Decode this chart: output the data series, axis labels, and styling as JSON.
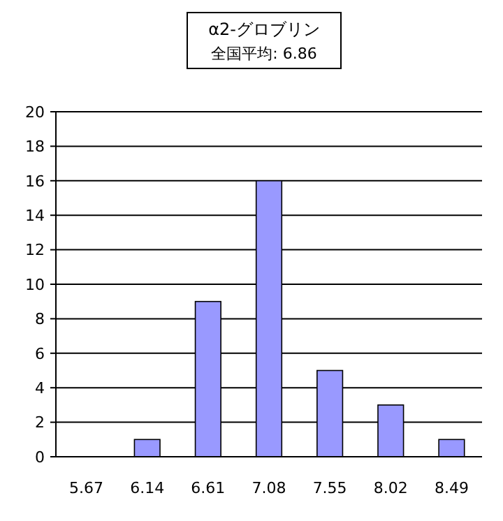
{
  "chart_data": {
    "type": "bar",
    "title": "α2-グロブリン",
    "subtitle": "全国平均: 6.86",
    "categories": [
      "5.67",
      "6.14",
      "6.61",
      "7.08",
      "7.55",
      "8.02",
      "8.49"
    ],
    "values": [
      0,
      1,
      9,
      16,
      5,
      3,
      1
    ],
    "color": "#9999ff",
    "ylim": [
      0,
      20
    ],
    "yticks": [
      0,
      2,
      4,
      6,
      8,
      10,
      12,
      14,
      16,
      18,
      20
    ],
    "grid": "y"
  }
}
